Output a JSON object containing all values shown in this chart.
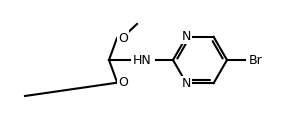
{
  "bg_color": "#ffffff",
  "line_color": "#000000",
  "text_color": "#000000",
  "bond_width": 1.5,
  "font_size": 9,
  "atoms": {
    "N_label": "N",
    "HN_label": "HN",
    "Br_label": "Br",
    "O_labels": [
      "O",
      "O"
    ]
  }
}
